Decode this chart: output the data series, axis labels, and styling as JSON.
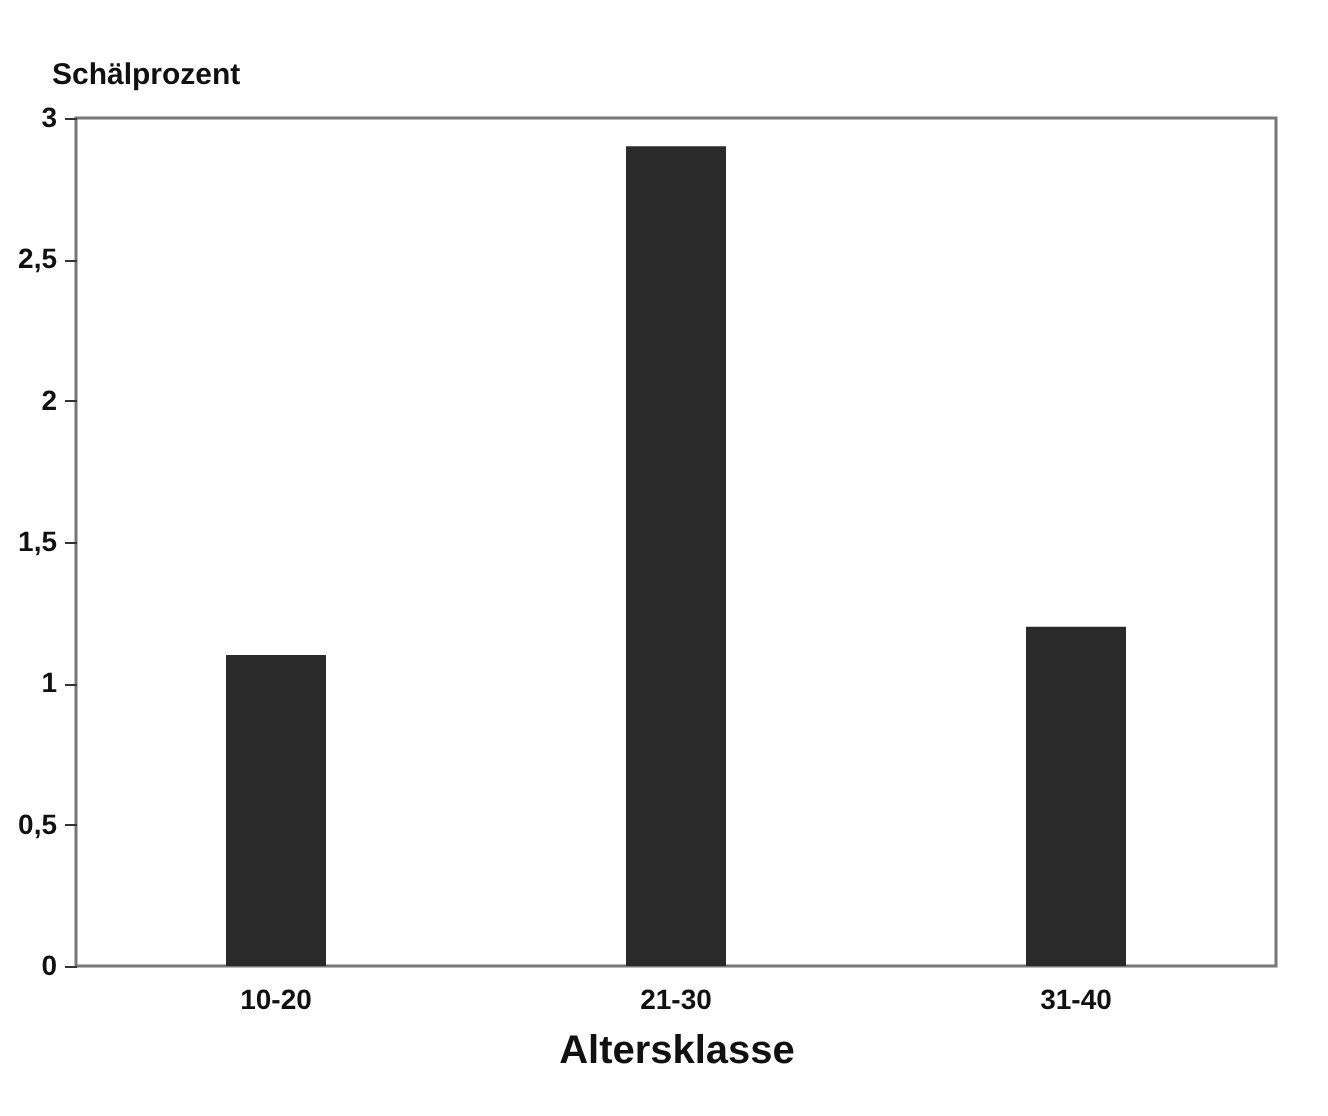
{
  "chart_data": {
    "type": "bar",
    "xlabel": "Altersklasse",
    "ylabel": "Schälprozent",
    "categories": [
      "10-20",
      "21-30",
      "31-40"
    ],
    "values": [
      1.1,
      2.9,
      1.2
    ],
    "color": "#2a2a2a",
    "ylim": [
      0,
      3
    ],
    "yticks": [
      0,
      {
        "value": 0.5,
        "label": "0,5"
      },
      1,
      {
        "value": 1.5,
        "label": "1,5"
      },
      2,
      {
        "value": 2.5,
        "label": "2,5"
      },
      3
    ],
    "grid": false
  }
}
